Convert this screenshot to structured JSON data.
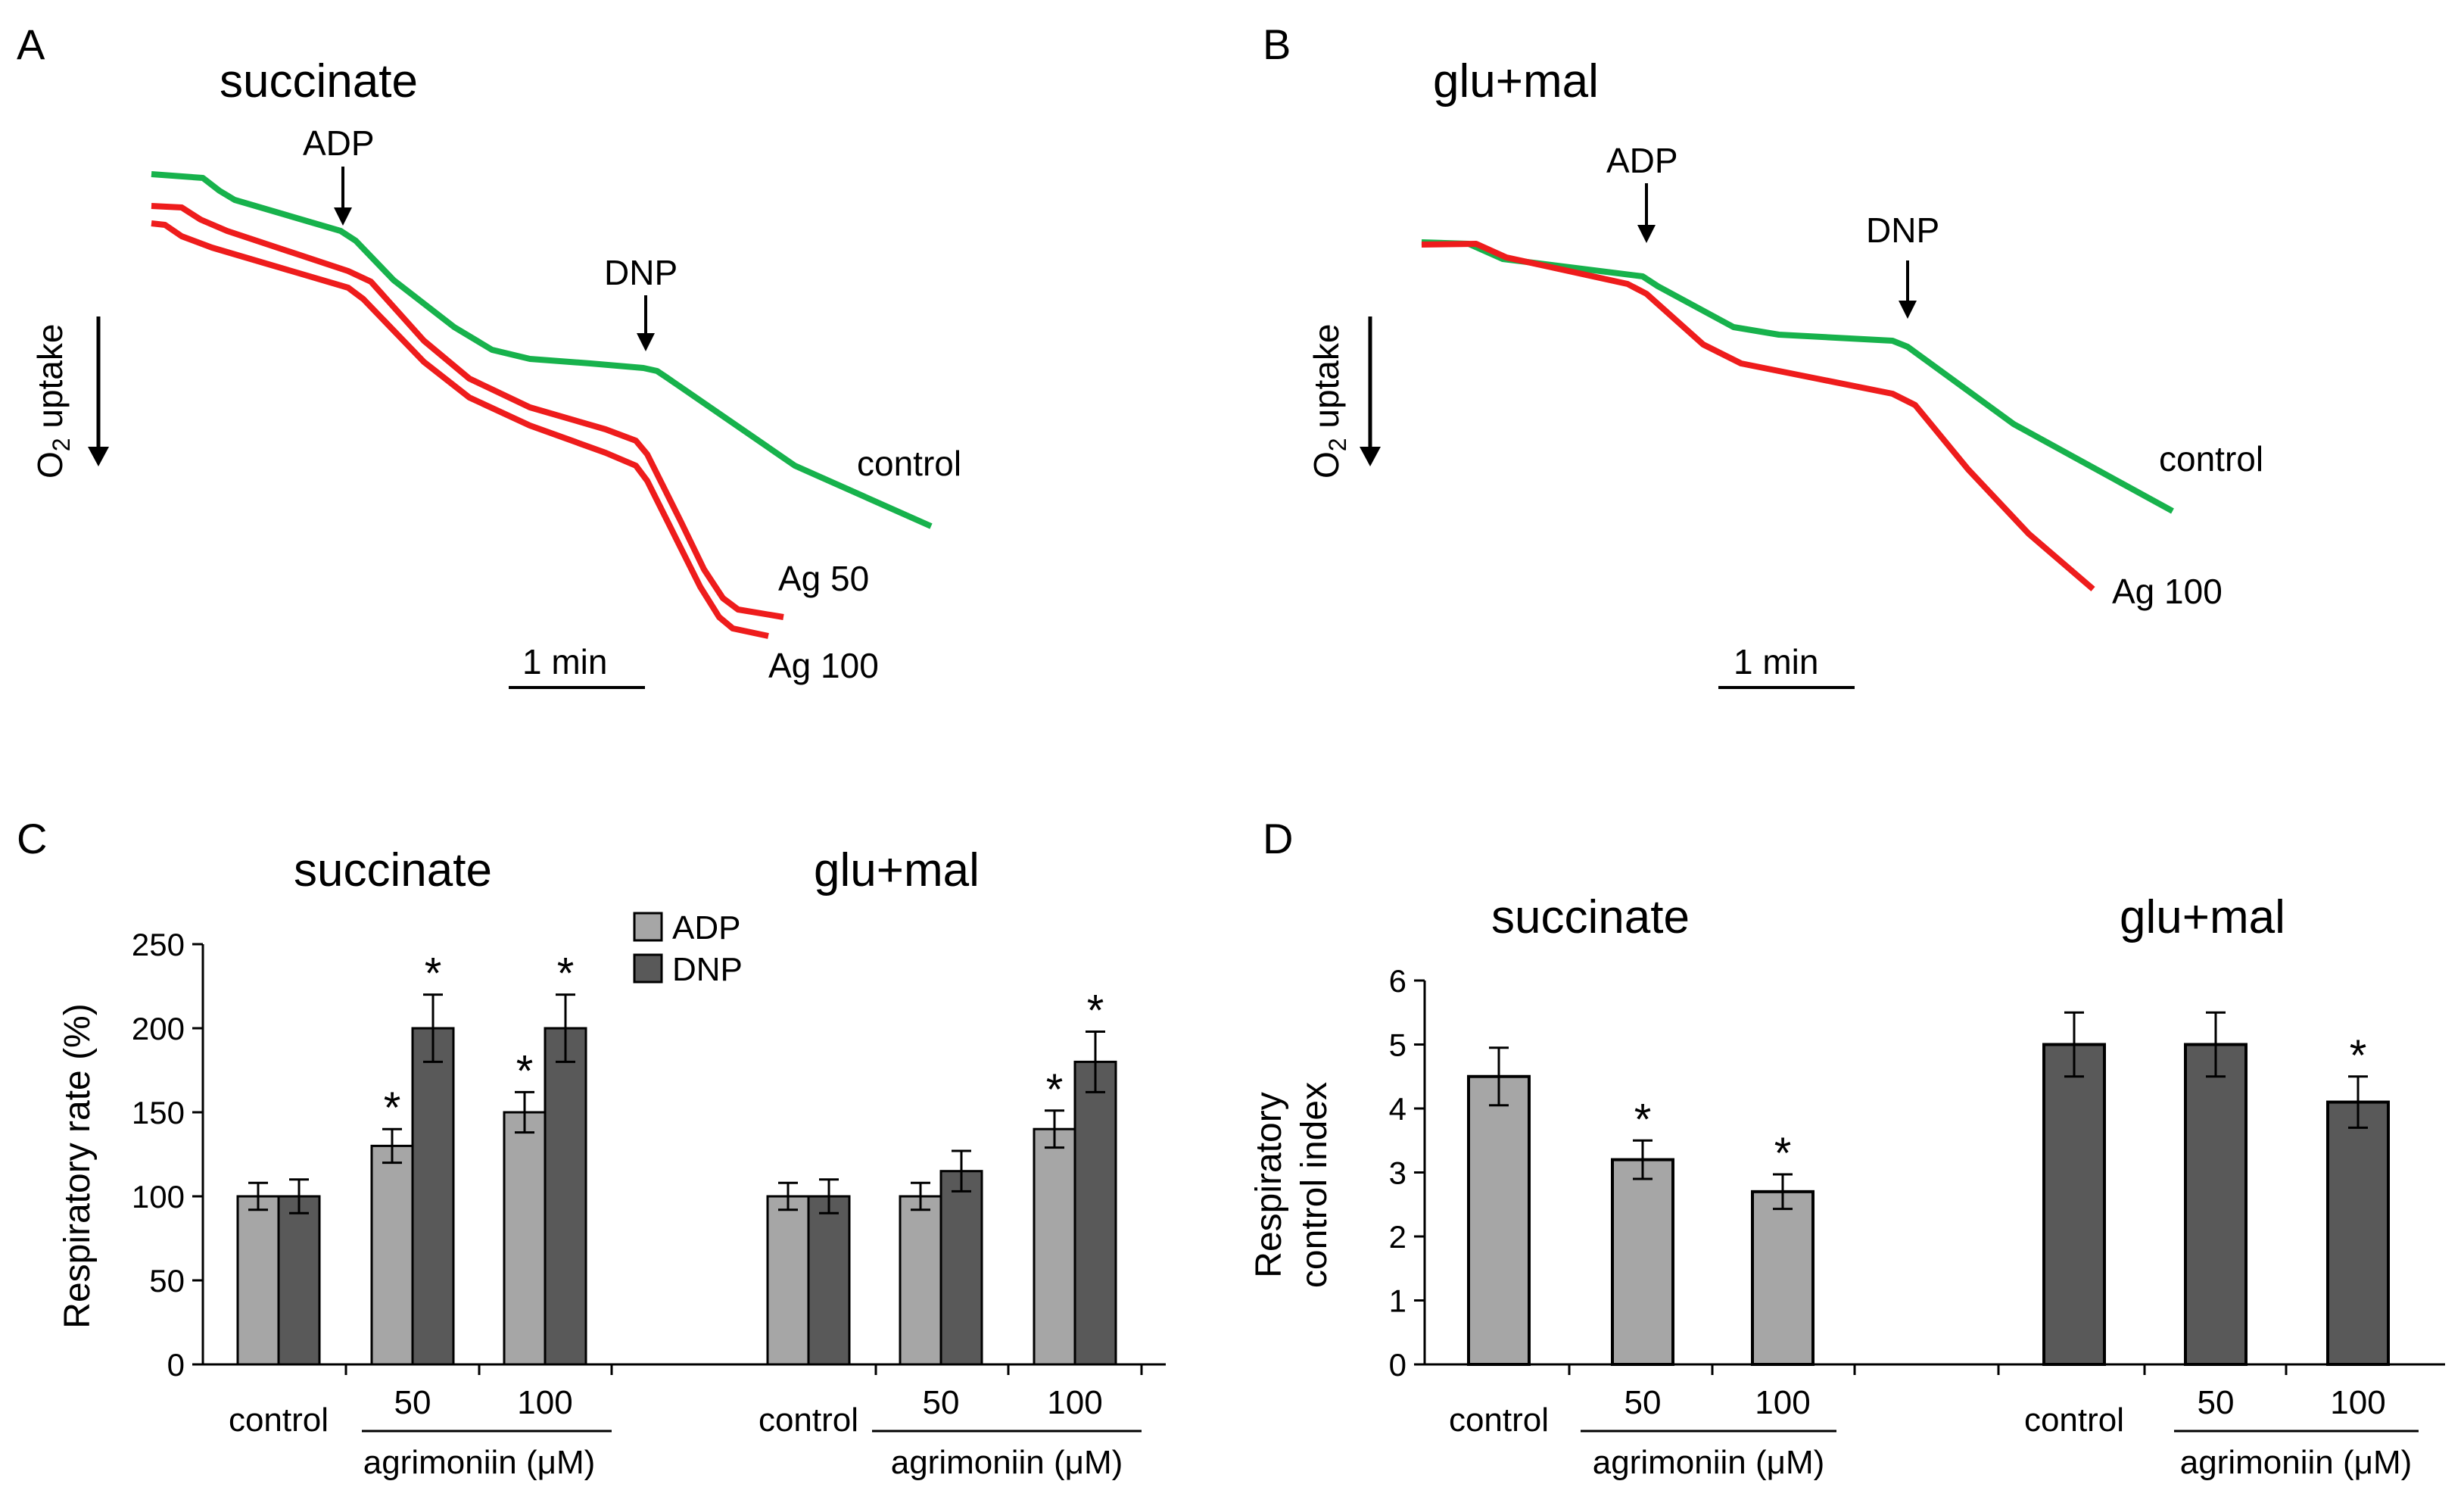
{
  "colors": {
    "control": "#17b24c",
    "treated": "#ee1c1c",
    "adp": "#a6a6a6",
    "dnp": "#595959",
    "axis": "#000000"
  },
  "panels": {
    "A": {
      "letter": "A",
      "substrate": "succinate",
      "y_label_main": "O",
      "y_label_sub": "2",
      "y_label_rest": " uptake",
      "arrows": {
        "adp": "ADP",
        "dnp": "DNP"
      },
      "traces": [
        {
          "name": "control",
          "label": "control",
          "color": "#17b24c"
        },
        {
          "name": "ag50",
          "label": "Ag 50",
          "color": "#ee1c1c"
        },
        {
          "name": "ag100",
          "label": "Ag 100",
          "color": "#ee1c1c"
        }
      ],
      "scale_bar": "1 min"
    },
    "B": {
      "letter": "B",
      "substrate": "glu+mal",
      "y_label_main": "O",
      "y_label_sub": "2",
      "y_label_rest": " uptake",
      "arrows": {
        "adp": "ADP",
        "dnp": "DNP"
      },
      "traces": [
        {
          "name": "control",
          "label": "control",
          "color": "#17b24c"
        },
        {
          "name": "ag100",
          "label": "Ag 100",
          "color": "#ee1c1c"
        }
      ],
      "scale_bar": "1 min"
    },
    "C": {
      "letter": "C",
      "subtitles": [
        "succinate",
        "glu+mal"
      ]
    },
    "D": {
      "letter": "D",
      "subtitles": [
        "succinate",
        "glu+mal"
      ]
    }
  },
  "chart_data": [
    {
      "type": "bar",
      "panel": "C",
      "ylabel": "Respiratory  rate (%)",
      "ylim": [
        0,
        250
      ],
      "yticks": [
        0,
        50,
        100,
        150,
        200,
        250
      ],
      "legend": [
        "ADP",
        "DNP"
      ],
      "groups": [
        {
          "substrate": "succinate",
          "category": "control",
          "adp": 100,
          "adp_err": 8,
          "dnp": 100,
          "dnp_err": 10,
          "adp_sig": "",
          "dnp_sig": ""
        },
        {
          "substrate": "succinate",
          "category": "50",
          "adp": 130,
          "adp_err": 10,
          "dnp": 200,
          "dnp_err": 20,
          "adp_sig": "*",
          "dnp_sig": "*"
        },
        {
          "substrate": "succinate",
          "category": "100",
          "adp": 150,
          "adp_err": 12,
          "dnp": 200,
          "dnp_err": 20,
          "adp_sig": "*",
          "dnp_sig": "*"
        },
        {
          "substrate": "glu+mal",
          "category": "control",
          "adp": 100,
          "adp_err": 8,
          "dnp": 100,
          "dnp_err": 10,
          "adp_sig": "",
          "dnp_sig": ""
        },
        {
          "substrate": "glu+mal",
          "category": "50",
          "adp": 100,
          "adp_err": 8,
          "dnp": 115,
          "dnp_err": 12,
          "adp_sig": "",
          "dnp_sig": ""
        },
        {
          "substrate": "glu+mal",
          "category": "100",
          "adp": 140,
          "adp_err": 11,
          "dnp": 180,
          "dnp_err": 18,
          "adp_sig": "*",
          "dnp_sig": "*"
        }
      ],
      "group_label": "agrimoniin (μM)"
    },
    {
      "type": "bar",
      "panel": "D",
      "ylabel_lines": [
        "Respiratory",
        "control index"
      ],
      "ylim": [
        0,
        6
      ],
      "yticks": [
        0,
        1,
        2,
        3,
        4,
        5,
        6
      ],
      "bars": [
        {
          "substrate": "succinate",
          "category": "control",
          "value": 4.5,
          "err": 0.45,
          "sig": "",
          "color": "adp"
        },
        {
          "substrate": "succinate",
          "category": "50",
          "value": 3.2,
          "err": 0.3,
          "sig": "*",
          "color": "adp"
        },
        {
          "substrate": "succinate",
          "category": "100",
          "value": 2.7,
          "err": 0.27,
          "sig": "*",
          "color": "adp"
        },
        {
          "substrate": "glu+mal",
          "category": "control",
          "value": 5.0,
          "err": 0.5,
          "sig": "",
          "color": "dnp"
        },
        {
          "substrate": "glu+mal",
          "category": "50",
          "value": 5.0,
          "err": 0.5,
          "sig": "",
          "color": "dnp"
        },
        {
          "substrate": "glu+mal",
          "category": "100",
          "value": 4.1,
          "err": 0.4,
          "sig": "*",
          "color": "dnp"
        }
      ],
      "group_label": "agrimoniin (μM)"
    }
  ]
}
